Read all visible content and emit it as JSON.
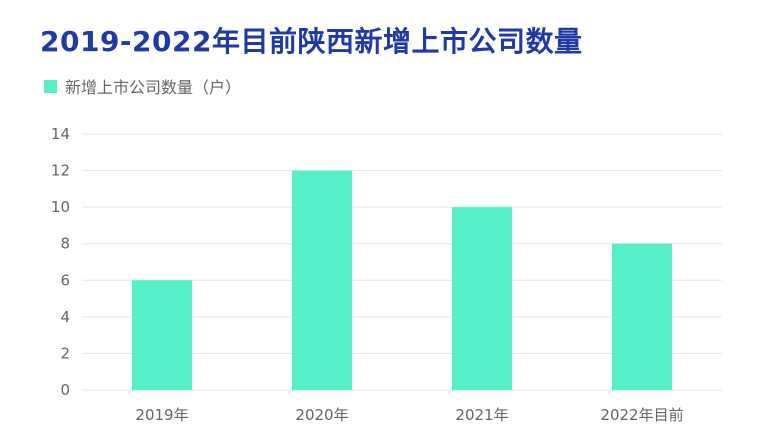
{
  "chart_data": {
    "type": "bar",
    "title": "2019-2022年目前陕西新增上市公司数量",
    "categories": [
      "2019年",
      "2020年",
      "2021年",
      "2022年目前"
    ],
    "series": [
      {
        "name": "新增上市公司数量（户）",
        "values": [
          6,
          12,
          10,
          8
        ],
        "color": "#55f0c8"
      }
    ],
    "ylim": [
      0,
      14
    ],
    "yticks": [
      "0",
      "2",
      "4",
      "6",
      "8",
      "10",
      "12",
      "14"
    ],
    "xlabel": "",
    "ylabel": "",
    "grid": true,
    "legend_position": "top-left"
  },
  "colors": {
    "title": "#1f3aa6",
    "grid": "#e6e6e6",
    "axis_text": "#666666"
  }
}
